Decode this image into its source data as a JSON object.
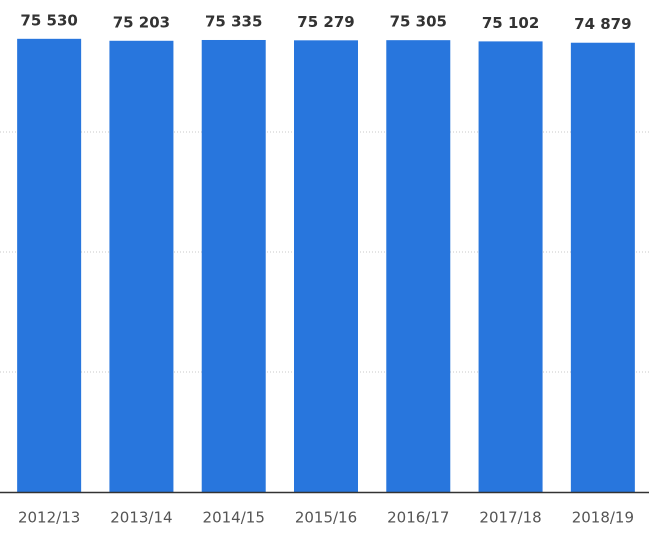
{
  "chart_data": {
    "type": "bar",
    "categories": [
      "2012/13",
      "2013/14",
      "2014/15",
      "2015/16",
      "2016/17",
      "2017/18",
      "2018/19"
    ],
    "values": [
      75530,
      75203,
      75335,
      75279,
      75305,
      75102,
      74879
    ],
    "value_labels": [
      "75 530",
      "75 203",
      "75 335",
      "75 279",
      "75 305",
      "75 102",
      "74 879"
    ],
    "color": "#2876dd",
    "ylim": [
      0,
      80000
    ],
    "yticks": [
      20000,
      40000,
      60000
    ],
    "grid": true
  }
}
